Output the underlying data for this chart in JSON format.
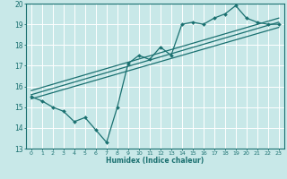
{
  "xlabel": "Humidex (Indice chaleur)",
  "xlim": [
    -0.5,
    23.5
  ],
  "ylim": [
    13,
    20
  ],
  "yticks": [
    13,
    14,
    15,
    16,
    17,
    18,
    19,
    20
  ],
  "xticks": [
    0,
    1,
    2,
    3,
    4,
    5,
    6,
    7,
    8,
    9,
    10,
    11,
    12,
    13,
    14,
    15,
    16,
    17,
    18,
    19,
    20,
    21,
    22,
    23
  ],
  "bg_color": "#c8e8e8",
  "grid_color": "#ffffff",
  "line_color": "#1a7070",
  "zigzag_x": [
    0,
    1,
    2,
    3,
    4,
    5,
    6,
    7,
    8,
    9,
    10,
    11,
    12,
    13,
    14,
    15,
    16,
    17,
    18,
    19,
    20,
    21,
    22,
    23
  ],
  "zigzag_y": [
    15.5,
    15.3,
    15.0,
    14.8,
    14.3,
    14.5,
    13.9,
    13.3,
    15.0,
    17.1,
    17.5,
    17.3,
    17.9,
    17.5,
    19.0,
    19.1,
    19.0,
    19.3,
    19.5,
    19.9,
    19.3,
    19.1,
    19.0,
    19.0
  ],
  "env_line1_x": [
    0,
    23
  ],
  "env_line1_y": [
    15.6,
    19.1
  ],
  "env_line2_x": [
    0,
    23
  ],
  "env_line2_y": [
    15.8,
    19.3
  ],
  "env_line3_x": [
    0,
    23
  ],
  "env_line3_y": [
    15.4,
    18.85
  ]
}
